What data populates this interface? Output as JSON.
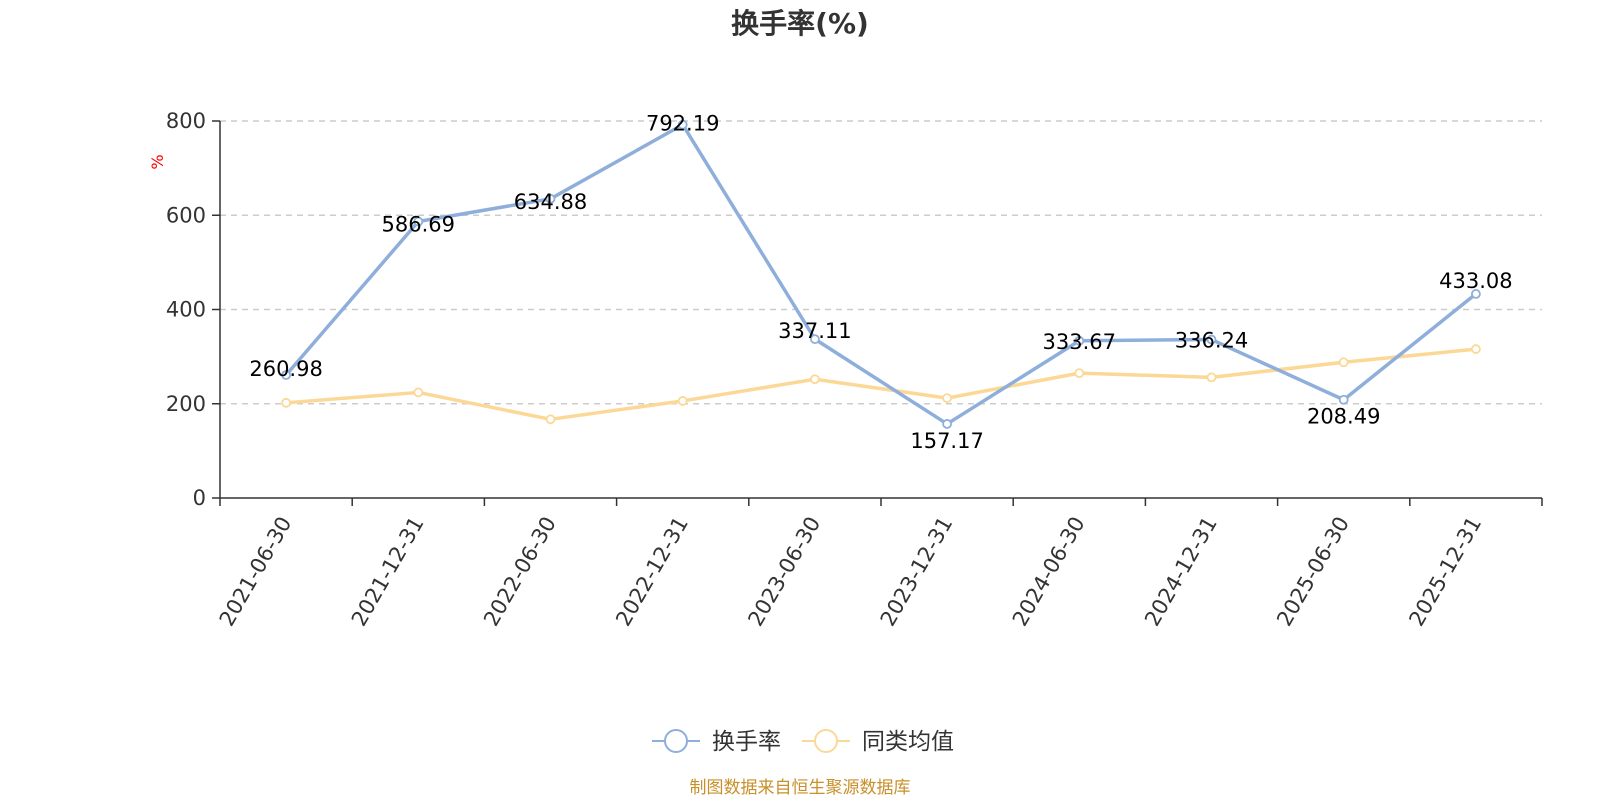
{
  "title": "换手率(%)",
  "source": "制图数据来自恒生聚源数据库",
  "chart_data": {
    "type": "line",
    "title": "换手率(%)",
    "ylabel": "%",
    "xlabel": "",
    "ylim": [
      0,
      800
    ],
    "yticks": [
      0,
      200,
      400,
      600,
      800
    ],
    "grid": true,
    "legend_position": "bottom-center",
    "categories": [
      "2021-06-30",
      "2021-12-31",
      "2022-06-30",
      "2022-12-31",
      "2023-06-30",
      "2023-12-31",
      "2024-06-30",
      "2024-12-31",
      "2025-06-30",
      "2025-12-31"
    ],
    "series": [
      {
        "name": "换手率",
        "color": "#8eaedb",
        "values": [
          260.98,
          586.69,
          634.88,
          792.19,
          337.11,
          157.17,
          333.67,
          336.24,
          208.49,
          433.08
        ],
        "data_labels": [
          "260.98",
          "586.69",
          "634.88",
          "792.19",
          "337.11",
          "157.17",
          "333.67",
          "336.24",
          "208.49",
          "433.08"
        ]
      },
      {
        "name": "同类均值",
        "color": "#fcd896",
        "values": [
          202,
          224,
          167,
          206,
          252,
          212,
          265,
          256,
          288,
          316
        ]
      }
    ]
  }
}
